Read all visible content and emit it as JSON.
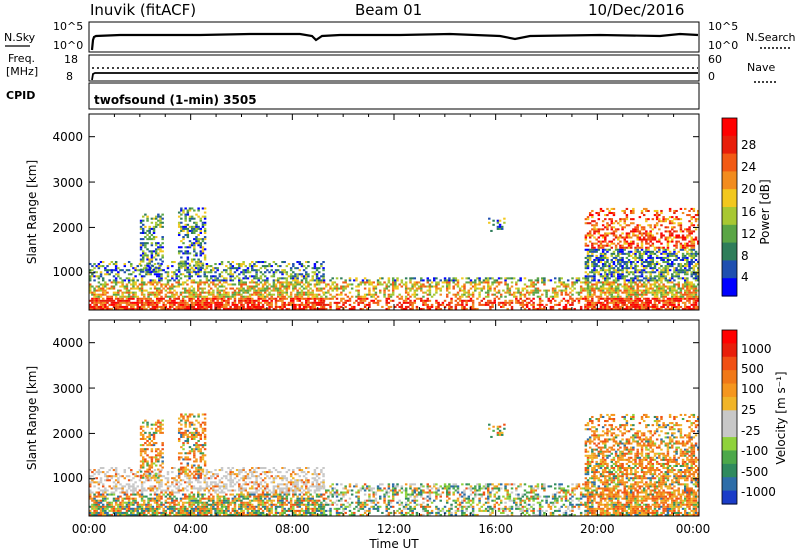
{
  "header": {
    "station": "Inuvik (fitACF)",
    "beam": "Beam 01",
    "date": "10/Dec/2016"
  },
  "noise_panel": {
    "left_label": "N.Sky",
    "left_ticks": [
      "10^5",
      "10^0"
    ],
    "right_label": "N.Search",
    "right_ticks": [
      "10^5",
      "10^0"
    ]
  },
  "freq_panel": {
    "left_label_1": "Freq.",
    "left_label_2": "[MHz]",
    "left_ticks": [
      "18",
      "8"
    ],
    "right_label": "Nave",
    "right_ticks": [
      "60",
      "0"
    ]
  },
  "cpid": {
    "label": "CPID",
    "program": "twofsound (1-min) 3505"
  },
  "power_panel": {
    "ylabel": "Slant Range [km]",
    "yticks": [
      "4000",
      "3000",
      "2000",
      "1000"
    ],
    "colorbar_label": "Power [dB]",
    "colorbar_ticks": [
      "28",
      "24",
      "20",
      "16",
      "12",
      "8",
      "4"
    ],
    "colorbar_colors": [
      "#0000ff",
      "#1f4fb0",
      "#2e7d5a",
      "#5aa545",
      "#a8c832",
      "#f2c81e",
      "#f28c1e",
      "#f25a14",
      "#e81e0a",
      "#ff0000"
    ]
  },
  "velocity_panel": {
    "ylabel": "Slant Range [km]",
    "yticks": [
      "4000",
      "3000",
      "2000",
      "1000"
    ],
    "colorbar_label": "Velocity [m s⁻¹]",
    "colorbar_ticks": [
      "1000",
      "500",
      "100",
      "25",
      "-25",
      "-100",
      "-500",
      "-1000"
    ],
    "colorbar_colors": [
      "#1a3cc8",
      "#2d6da8",
      "#2f8a5e",
      "#4ca84a",
      "#8fd23c",
      "#c8c8c8",
      "#c8c8c8",
      "#f0b428",
      "#f5961e",
      "#f07818",
      "#f05014",
      "#e81e0a",
      "#ff0000"
    ]
  },
  "x_axis": {
    "ticks": [
      "00:00",
      "04:00",
      "08:00",
      "12:00",
      "16:00",
      "20:00",
      "00:00"
    ],
    "label": "Time UT"
  },
  "chart_data": {
    "type": "heatmap",
    "x_range_hours": [
      0,
      24
    ],
    "y_range_km": [
      180,
      4500
    ],
    "power_dB_range": [
      0,
      30
    ],
    "velocity_range": [
      -1000,
      1000
    ],
    "scatter_regions": [
      {
        "t0": 0.0,
        "t1": 9.2,
        "r0": 180,
        "r1": 1250,
        "power": "mixed high near ground",
        "velocity": "low/negative"
      },
      {
        "t0": 2.0,
        "t1": 2.9,
        "r0": 1000,
        "r1": 2300,
        "power": "green-orange",
        "velocity": "negative"
      },
      {
        "t0": 3.5,
        "t1": 4.6,
        "r0": 1000,
        "r1": 2400,
        "power": "green-orange",
        "velocity": "negative"
      },
      {
        "t0": 9.2,
        "t1": 19.5,
        "r0": 180,
        "r1": 900,
        "power": "green-orange",
        "velocity": "green/orange mix"
      },
      {
        "t0": 15.7,
        "t1": 16.3,
        "r0": 1900,
        "r1": 2200,
        "power": "green-blue",
        "velocity": "orange"
      },
      {
        "t0": 19.5,
        "t1": 24.0,
        "r0": 180,
        "r1": 2400,
        "power": "orange-red at top",
        "velocity": "orange"
      }
    ]
  }
}
